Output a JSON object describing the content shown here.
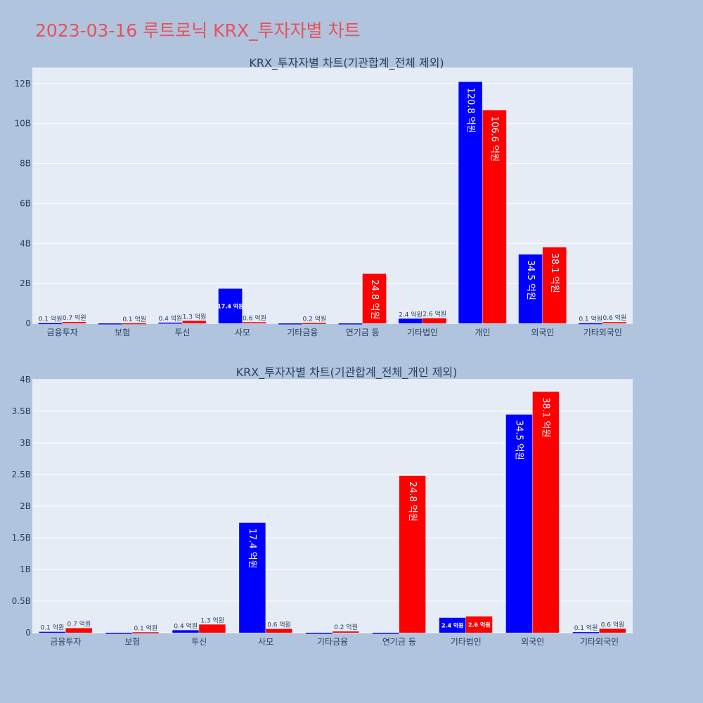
{
  "page": {
    "title": "2023-03-16 루트로닉 KRX_투자자별 차트"
  },
  "colors": {
    "background": "#b0c4de",
    "plot_bg": "#e5ecf6",
    "grid": "#ffffff",
    "buy": "#0000ff",
    "sell": "#ff0000",
    "title": "#e8505b",
    "text": "#2a3f5f"
  },
  "chart_data": [
    {
      "type": "bar",
      "title": "KRX_투자자별 차트(기관합계_전체 제외)",
      "categories": [
        "금융투자",
        "보험",
        "투신",
        "사모",
        "기타금융",
        "연기금 등",
        "기타법인",
        "개인",
        "외국인",
        "기타외국인"
      ],
      "series": [
        {
          "color": "#0000ff",
          "values": [
            14800000,
            0,
            40000000,
            1737000000,
            0,
            0,
            236000000,
            12080000000,
            3448000000,
            10000000
          ],
          "labels": [
            "0.1 억원",
            "",
            "0.4 억원",
            "17.4 억원",
            "",
            "",
            "2.4 억원",
            "120.8 억원",
            "34.5 억원",
            "0.1 억원"
          ]
        },
        {
          "color": "#ff0000",
          "values": [
            72000000,
            8000000,
            130000000,
            60000000,
            20000000,
            2480000000,
            258000000,
            10660000000,
            3808000000,
            62000000
          ],
          "labels": [
            "0.7 억원",
            "0.1 억원",
            "1.3 억원",
            "0.6 억원",
            "0.2 억원",
            "24.8 억원",
            "2.6 억원",
            "106.6 억원",
            "38.1 억원",
            "0.6 억원"
          ]
        }
      ],
      "ylim": [
        0,
        12800000000
      ],
      "yticks": [
        0,
        2000000000,
        4000000000,
        6000000000,
        8000000000,
        10000000000,
        12000000000
      ],
      "ytick_labels": [
        "0",
        "2B",
        "4B",
        "6B",
        "8B",
        "10B",
        "12B"
      ],
      "grid": true
    },
    {
      "type": "bar",
      "title": "KRX_투자자별 차트(기관합계_전체_개인 제외)",
      "categories": [
        "금융투자",
        "보험",
        "투신",
        "사모",
        "기타금융",
        "연기금 등",
        "기타법인",
        "외국인",
        "기타외국인"
      ],
      "series": [
        {
          "color": "#0000ff",
          "values": [
            14800000,
            0,
            40000000,
            1737000000,
            0,
            0,
            236000000,
            3448000000,
            10000000
          ],
          "labels": [
            "0.1 억원",
            "",
            "0.4 억원",
            "17.4 억원",
            "",
            "",
            "2.4 억원",
            "34.5 억원",
            "0.1 억원"
          ]
        },
        {
          "color": "#ff0000",
          "values": [
            72000000,
            8000000,
            130000000,
            60000000,
            20000000,
            2480000000,
            258000000,
            3808000000,
            62000000
          ],
          "labels": [
            "0.7 억원",
            "0.1 억원",
            "1.3 억원",
            "0.6 억원",
            "0.2 억원",
            "24.8 억원",
            "2.6 억원",
            "38.1 억원",
            "0.6 억원"
          ]
        }
      ],
      "ylim": [
        0,
        4000000000
      ],
      "yticks": [
        0,
        500000000,
        1000000000,
        1500000000,
        2000000000,
        2500000000,
        3000000000,
        3500000000,
        4000000000
      ],
      "ytick_labels": [
        "0",
        "0.5B",
        "1B",
        "1.5B",
        "2B",
        "2.5B",
        "3B",
        "3.5B",
        "4B"
      ],
      "grid": true
    }
  ]
}
